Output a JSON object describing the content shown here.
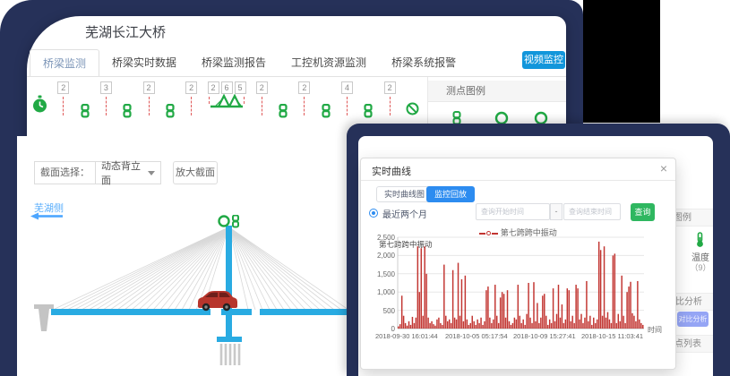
{
  "colors": {
    "navy_bg": "#263159",
    "accent_blue": "#1296db",
    "modal_tab_blue": "#2d8cf0",
    "green": "#21a945",
    "query_green": "#2fb760",
    "chart_red": "#c23531",
    "dash_red": "#e05b5b",
    "deck_blue": "#29abe2",
    "compare_btn": "#95a5f5"
  },
  "app": {
    "title": "芜湖长江大桥",
    "tabs": [
      {
        "label": "桥梁监测",
        "active": true
      },
      {
        "label": "桥梁实时数据",
        "active": false
      },
      {
        "label": "桥梁监测报告",
        "active": false
      },
      {
        "label": "工控机资源监测",
        "active": false
      },
      {
        "label": "桥梁系统报警",
        "active": false
      }
    ],
    "video_button": "视频监控"
  },
  "sensor_row": {
    "items": [
      {
        "type": "clock"
      },
      {
        "type": "badge",
        "value": "2"
      },
      {
        "type": "chain"
      },
      {
        "type": "badge",
        "value": "3"
      },
      {
        "type": "chain"
      },
      {
        "type": "badge",
        "value": "2"
      },
      {
        "type": "chain"
      },
      {
        "type": "badge",
        "value": "2"
      },
      {
        "type": "bridge",
        "values": [
          "2",
          "6",
          "5"
        ]
      },
      {
        "type": "badge",
        "value": "2"
      },
      {
        "type": "chain"
      },
      {
        "type": "badge",
        "value": "2"
      },
      {
        "type": "chain"
      },
      {
        "type": "badge",
        "value": "4"
      },
      {
        "type": "chain"
      },
      {
        "type": "badge",
        "value": "2"
      },
      {
        "type": "ban"
      }
    ]
  },
  "legend_panel": {
    "title": "测点图例"
  },
  "section_bar": {
    "label": "截面选择：",
    "selected": "动态背立面",
    "zoom_button": "放大截面"
  },
  "bridge": {
    "side_label": "芜湖侧"
  },
  "sidebar_fragment": {
    "legend_header": "测点图例",
    "temp_label": "温度",
    "temp_count": "（9）",
    "compare_header": "对比分析",
    "compare_button": "对比分析",
    "list_header": "测点列表"
  },
  "modal": {
    "title": "实时曲线",
    "close": "×",
    "tabs": [
      {
        "label": "实时曲线图",
        "active": false
      },
      {
        "label": "监控回放",
        "active": true
      }
    ],
    "range_radio": "最近两个月",
    "start_placeholder": "查询开始时间",
    "separator": "-",
    "end_placeholder": "查询结束时间",
    "query_button": "查询"
  },
  "chart_data": {
    "type": "bar",
    "title": "第七跨跨中振动",
    "legend": "第七跨跨中振动",
    "xlabel": "时间",
    "ylabel": "",
    "ylim": [
      0,
      2500
    ],
    "yticks": [
      0,
      500,
      1000,
      1500,
      2000,
      2500
    ],
    "ytick_labels": [
      "0",
      "500",
      "1,000",
      "1,500",
      "2,000",
      "2,500"
    ],
    "x_tick_labels": [
      "2018-09-30 16:01:44",
      "2018-10-05 05:17:54",
      "2018-10-09 15:27:41",
      "2018-10-15 11:03:41"
    ],
    "legend_position": "top-center",
    "grid": true,
    "series": [
      {
        "name": "第七跨跨中振动",
        "color": "#c23531",
        "values": [
          60,
          120,
          900,
          350,
          150,
          80,
          200,
          100,
          320,
          150,
          300,
          2250,
          1000,
          2200,
          350,
          2250,
          1500,
          300,
          150,
          200,
          120,
          80,
          250,
          300,
          150,
          100,
          1750,
          350,
          200,
          250,
          150,
          1600,
          300,
          250,
          1800,
          350,
          1350,
          200,
          1450,
          250,
          100,
          150,
          350,
          200,
          100,
          250,
          150,
          300,
          100,
          200,
          1050,
          1150,
          300,
          150,
          250,
          1200,
          350,
          150,
          850,
          1000,
          950,
          300,
          1050,
          200,
          100,
          150,
          300,
          250,
          1200,
          350,
          150,
          250,
          100,
          400,
          1250,
          300,
          150,
          1270,
          200,
          700,
          150,
          300,
          900,
          950,
          350,
          100,
          250,
          150,
          1100,
          200,
          400,
          1200,
          300,
          660,
          150,
          250,
          1100,
          1050,
          200,
          350,
          150,
          1200,
          1100,
          250,
          400,
          150,
          300,
          1300,
          200,
          350,
          100,
          300,
          150,
          250,
          2380,
          2150,
          350,
          2250,
          300,
          450,
          250,
          150,
          2000,
          2050,
          150,
          400,
          200,
          1450,
          350,
          150,
          1000,
          1150,
          1280,
          420,
          350,
          200,
          1300,
          250,
          150,
          100
        ]
      }
    ]
  }
}
